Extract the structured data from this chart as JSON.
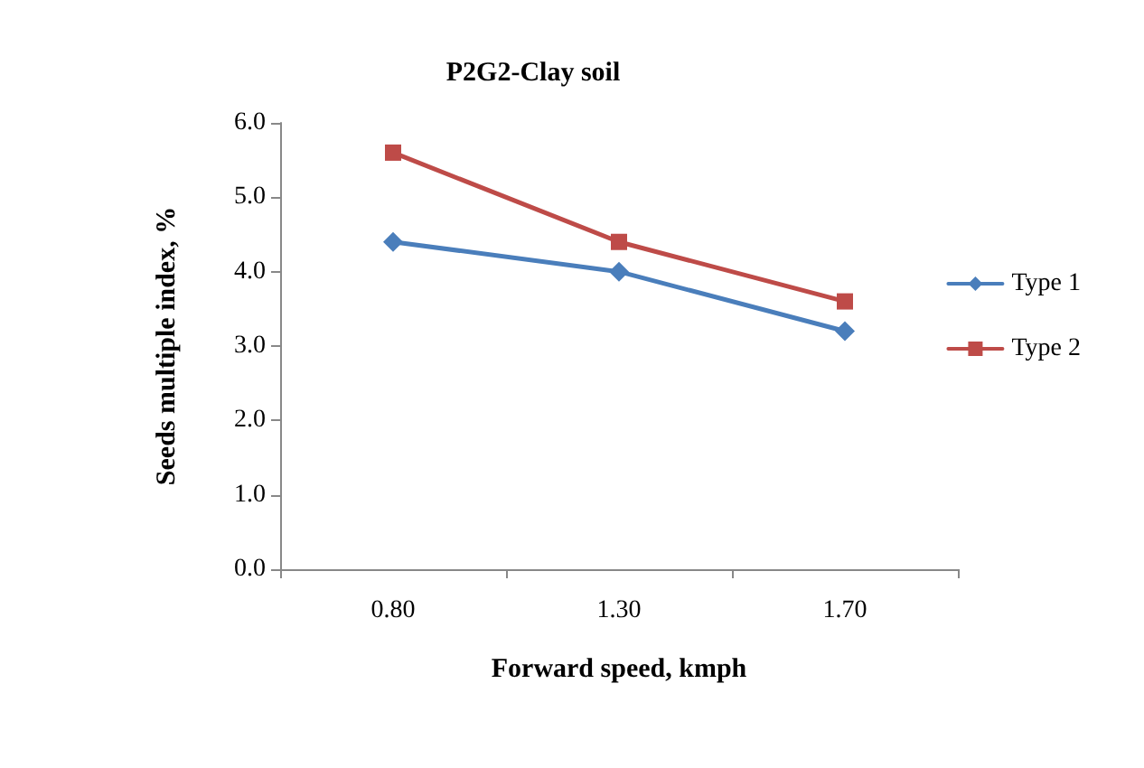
{
  "chart_data": {
    "type": "line",
    "title": "P2G2-Clay soil",
    "xlabel": "Forward speed, kmph",
    "ylabel": "Seeds multiple index, %",
    "categories": [
      "0.80",
      "1.30",
      "1.70"
    ],
    "series": [
      {
        "name": "Type 1",
        "color": "#4a7ebb",
        "marker": "diamond",
        "values": [
          4.4,
          4.0,
          3.2
        ]
      },
      {
        "name": "Type 2",
        "color": "#be4b48",
        "marker": "square",
        "values": [
          5.6,
          4.4,
          3.6
        ]
      }
    ],
    "ylim": [
      0,
      6
    ],
    "yticks": [
      {
        "value": 0,
        "label": "0.0"
      },
      {
        "value": 1,
        "label": "1.0"
      },
      {
        "value": 2,
        "label": "2.0"
      },
      {
        "value": 3,
        "label": "3.0"
      },
      {
        "value": 4,
        "label": "4.0"
      },
      {
        "value": 5,
        "label": "5.0"
      },
      {
        "value": 6,
        "label": "6.0"
      }
    ],
    "grid": false,
    "legend": "right",
    "line_style": "solid"
  }
}
